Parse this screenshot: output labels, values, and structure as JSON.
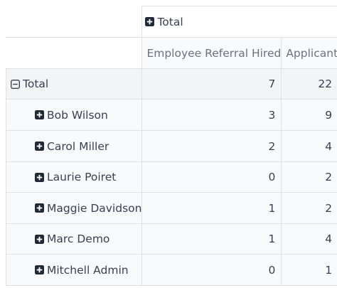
{
  "pivot": {
    "col_header": {
      "label": "Total",
      "icon": "plus-square-icon"
    },
    "measures": [
      "Employee Referral Hired",
      "Applicant"
    ],
    "total_row": {
      "label": "Total",
      "icon": "minus-square-icon",
      "values": [
        "7",
        "22"
      ]
    },
    "rows": [
      {
        "label": "Bob Wilson",
        "icon": "plus-square-icon",
        "values": [
          "3",
          "9"
        ]
      },
      {
        "label": "Carol Miller",
        "icon": "plus-square-icon",
        "values": [
          "2",
          "4"
        ]
      },
      {
        "label": "Laurie Poiret",
        "icon": "plus-square-icon",
        "values": [
          "0",
          "2"
        ]
      },
      {
        "label": "Maggie Davidson",
        "icon": "plus-square-icon",
        "values": [
          "1",
          "2"
        ]
      },
      {
        "label": "Marc Demo",
        "icon": "plus-square-icon",
        "values": [
          "1",
          "4"
        ]
      },
      {
        "label": "Mitchell Admin",
        "icon": "plus-square-icon",
        "values": [
          "0",
          "1"
        ]
      }
    ]
  },
  "colors": {
    "border": "#dee2e6",
    "text": "#374151",
    "muted": "#6b7280",
    "icon": "#1f2937"
  }
}
